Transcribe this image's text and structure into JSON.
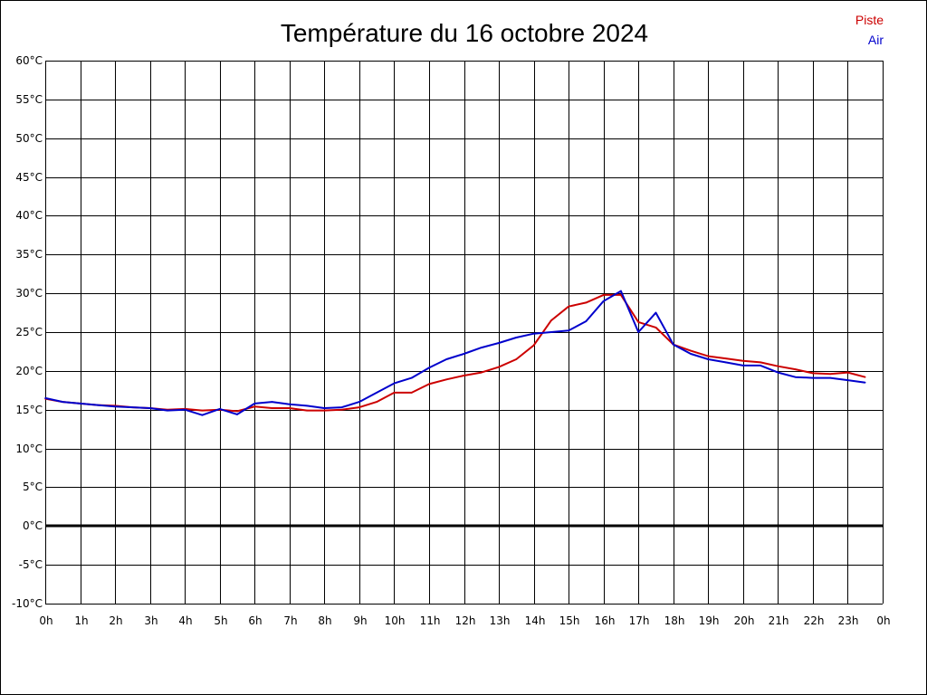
{
  "chart_data": {
    "type": "line",
    "title": "Température du 16 octobre 2024",
    "xlabel": "",
    "ylabel": "",
    "xlim": [
      0,
      24
    ],
    "ylim": [
      -10,
      60
    ],
    "y_ticks": [
      60,
      55,
      50,
      45,
      40,
      35,
      30,
      25,
      20,
      15,
      10,
      5,
      0,
      -5,
      -10
    ],
    "y_tick_labels": [
      "60°C",
      "55°C",
      "50°C",
      "45°C",
      "40°C",
      "35°C",
      "30°C",
      "25°C",
      "20°C",
      "15°C",
      "10°C",
      "5°C",
      "0°C",
      "-5°C",
      "-10°C"
    ],
    "x_ticks": [
      0,
      1,
      2,
      3,
      4,
      5,
      6,
      7,
      8,
      9,
      10,
      11,
      12,
      13,
      14,
      15,
      16,
      17,
      18,
      19,
      20,
      21,
      22,
      23,
      24
    ],
    "x_tick_labels": [
      "0h",
      "1h",
      "2h",
      "3h",
      "4h",
      "5h",
      "6h",
      "7h",
      "8h",
      "9h",
      "10h",
      "11h",
      "12h",
      "13h",
      "14h",
      "15h",
      "16h",
      "17h",
      "18h",
      "19h",
      "20h",
      "21h",
      "22h",
      "23h",
      "0h"
    ],
    "grid": true,
    "zero_line": true,
    "legend_position": "top-right",
    "series": [
      {
        "name": "Piste",
        "color": "#cc0000",
        "x": [
          0,
          0.5,
          1,
          1.5,
          2,
          2.5,
          3,
          3.5,
          4,
          4.5,
          5,
          5.5,
          6,
          6.5,
          7,
          7.5,
          8,
          8.5,
          9,
          9.5,
          10,
          10.5,
          11,
          11.5,
          12,
          12.5,
          13,
          13.5,
          14,
          14.5,
          15,
          15.5,
          16,
          16.5,
          17,
          17.5,
          18,
          18.5,
          19,
          19.5,
          20,
          20.5,
          21,
          21.5,
          22,
          22.5,
          23,
          23.5
        ],
        "y": [
          16.4,
          16.0,
          15.8,
          15.6,
          15.5,
          15.3,
          15.2,
          15.0,
          15.1,
          14.9,
          15.0,
          14.8,
          15.4,
          15.2,
          15.2,
          14.9,
          14.9,
          15.0,
          15.3,
          16.0,
          17.2,
          17.2,
          18.3,
          18.9,
          19.4,
          19.8,
          20.5,
          21.5,
          23.3,
          26.5,
          28.3,
          28.8,
          29.8,
          29.8,
          26.3,
          25.6,
          23.4,
          22.6,
          21.9,
          21.6,
          21.3,
          21.1,
          20.6,
          20.2,
          19.7,
          19.6,
          19.8,
          19.2
        ]
      },
      {
        "name": "Air",
        "color": "#0000cc",
        "x": [
          0,
          0.5,
          1,
          1.5,
          2,
          2.5,
          3,
          3.5,
          4,
          4.5,
          5,
          5.5,
          6,
          6.5,
          7,
          7.5,
          8,
          8.5,
          9,
          9.5,
          10,
          10.5,
          11,
          11.5,
          12,
          12.5,
          13,
          13.5,
          14,
          14.5,
          15,
          15.5,
          16,
          16.5,
          17,
          17.5,
          18,
          18.5,
          19,
          19.5,
          20,
          20.5,
          21,
          21.5,
          22,
          22.5,
          23,
          23.5
        ],
        "y": [
          16.5,
          16.0,
          15.8,
          15.6,
          15.4,
          15.3,
          15.2,
          14.9,
          15.0,
          14.3,
          15.1,
          14.4,
          15.8,
          16.0,
          15.7,
          15.5,
          15.2,
          15.3,
          16.0,
          17.2,
          18.4,
          19.1,
          20.4,
          21.5,
          22.2,
          23.0,
          23.6,
          24.3,
          24.8,
          25.0,
          25.2,
          26.4,
          29.0,
          30.3,
          25.0,
          27.5,
          23.4,
          22.2,
          21.5,
          21.1,
          20.7,
          20.7,
          19.8,
          19.2,
          19.1,
          19.1,
          18.8,
          18.5
        ]
      }
    ]
  }
}
